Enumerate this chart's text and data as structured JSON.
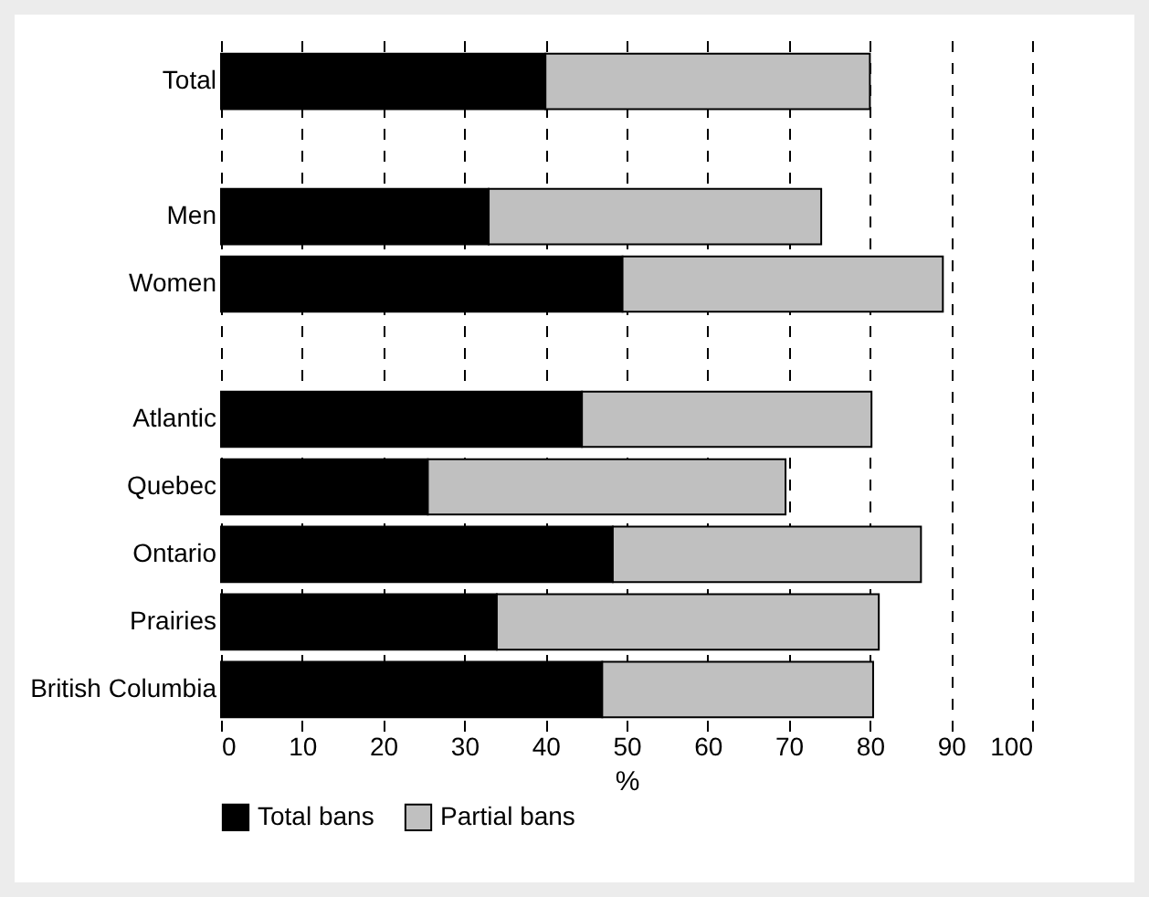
{
  "chart_data": {
    "type": "bar",
    "orientation": "horizontal",
    "stacked": true,
    "xlabel": "%",
    "categories": [
      "Total",
      null,
      "Men",
      "Women",
      null,
      "Atlantic",
      "Quebec",
      "Ontario",
      "Prairies",
      "British Columbia"
    ],
    "series": [
      {
        "name": "Total bans",
        "color": "#000000",
        "values": [
          40,
          null,
          33,
          49.5,
          null,
          44.5,
          25.5,
          48.3,
          34,
          47
        ]
      },
      {
        "name": "Partial bans",
        "color": "#c0c0c0",
        "values": [
          40,
          null,
          41,
          39.5,
          null,
          35.7,
          44.1,
          38,
          47.1,
          33.4
        ]
      }
    ],
    "xlim": [
      0,
      100
    ],
    "xticks": [
      0,
      10,
      20,
      30,
      40,
      50,
      60,
      70,
      80,
      90,
      100
    ],
    "grid": "x",
    "legend": "bottom"
  }
}
